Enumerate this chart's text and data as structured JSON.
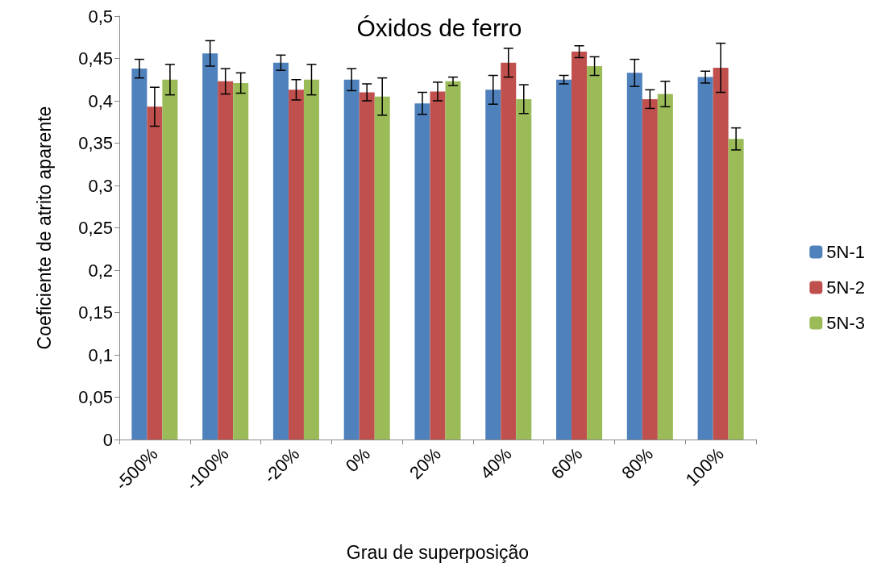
{
  "chart_data": {
    "type": "bar",
    "title": "Óxidos de ferro",
    "xlabel": "Grau de superposição",
    "ylabel": "Coeficiente de atrito aparente",
    "categories": [
      "-500%",
      "-100%",
      "-20%",
      "0%",
      "20%",
      "40%",
      "60%",
      "80%",
      "100%"
    ],
    "series": [
      {
        "name": "5N-1",
        "color": "#4f81bd",
        "values": [
          0.438,
          0.456,
          0.445,
          0.425,
          0.397,
          0.413,
          0.425,
          0.433,
          0.428
        ],
        "errors": [
          0.011,
          0.015,
          0.009,
          0.013,
          0.013,
          0.017,
          0.005,
          0.016,
          0.007
        ]
      },
      {
        "name": "5N-2",
        "color": "#c0504d",
        "values": [
          0.393,
          0.423,
          0.413,
          0.41,
          0.411,
          0.445,
          0.458,
          0.402,
          0.439
        ],
        "errors": [
          0.023,
          0.015,
          0.012,
          0.01,
          0.011,
          0.017,
          0.007,
          0.011,
          0.029
        ]
      },
      {
        "name": "5N-3",
        "color": "#9bbb59",
        "values": [
          0.425,
          0.421,
          0.425,
          0.405,
          0.423,
          0.402,
          0.441,
          0.408,
          0.355
        ],
        "errors": [
          0.018,
          0.012,
          0.018,
          0.022,
          0.005,
          0.017,
          0.011,
          0.015,
          0.013
        ]
      }
    ],
    "ylim": [
      0,
      0.5
    ],
    "yticks": [
      0,
      {
        "value": 0.05,
        "label": "0,05"
      },
      {
        "value": 0.1,
        "label": "0,1"
      },
      {
        "value": 0.15,
        "label": "0,15"
      },
      {
        "value": 0.2,
        "label": "0,2"
      },
      {
        "value": 0.25,
        "label": "0,25"
      },
      {
        "value": 0.3,
        "label": "0,3"
      },
      {
        "value": 0.35,
        "label": "0,35"
      },
      {
        "value": 0.4,
        "label": "0,4"
      },
      {
        "value": 0.45,
        "label": "0,45"
      },
      {
        "value": 0.5,
        "label": "0,5"
      }
    ],
    "grid": false,
    "legend": "right"
  }
}
